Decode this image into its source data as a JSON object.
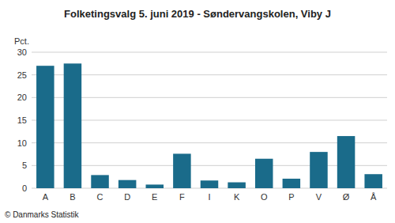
{
  "chart_data": {
    "type": "bar",
    "title": "Folketingsvalg 5. juni 2019 - Søndervangskolen, Viby J",
    "ylabel": "Pct.",
    "footer": "© Danmarks Statistik",
    "categories": [
      "A",
      "B",
      "C",
      "D",
      "E",
      "F",
      "I",
      "K",
      "O",
      "P",
      "V",
      "Ø",
      "Å"
    ],
    "values": [
      27.0,
      27.5,
      2.9,
      1.8,
      0.8,
      7.6,
      1.7,
      1.3,
      6.5,
      2.1,
      8.0,
      11.5,
      3.1
    ],
    "color": "#1a6b8a",
    "ylim": [
      0,
      30
    ],
    "yticks": [
      0,
      5,
      10,
      15,
      20,
      25,
      30
    ],
    "grid": true
  }
}
